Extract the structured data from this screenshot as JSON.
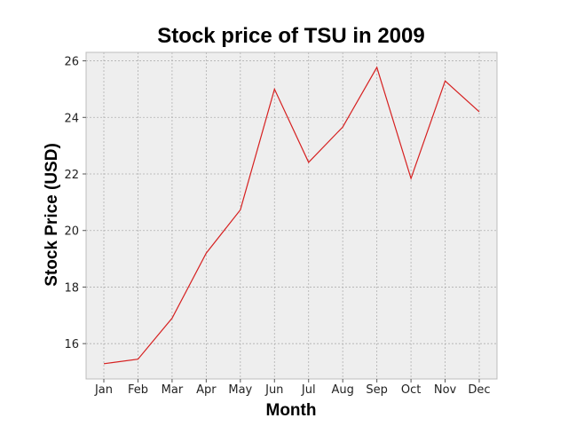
{
  "chart_data": {
    "type": "line",
    "title": "Stock price of TSU in 2009",
    "xlabel": "Month",
    "ylabel": "Stock Price (USD)",
    "categories": [
      "Jan",
      "Feb",
      "Mar",
      "Apr",
      "May",
      "Jun",
      "Jul",
      "Aug",
      "Sep",
      "Oct",
      "Nov",
      "Dec"
    ],
    "series": [
      {
        "values": [
          15.29,
          15.45,
          16.9,
          19.2,
          20.73,
          25.0,
          22.41,
          23.66,
          25.77,
          21.84,
          25.29,
          24.2
        ]
      }
    ],
    "ylim": [
      14.75,
      26.3
    ],
    "yticks": [
      16,
      18,
      20,
      22,
      24,
      26
    ],
    "grid": true,
    "legend": "none",
    "line_color": "#d62020",
    "plot_background": "#eeeeee",
    "grid_color": "#b0b0b0",
    "frame_color": "#bcbcbc"
  }
}
